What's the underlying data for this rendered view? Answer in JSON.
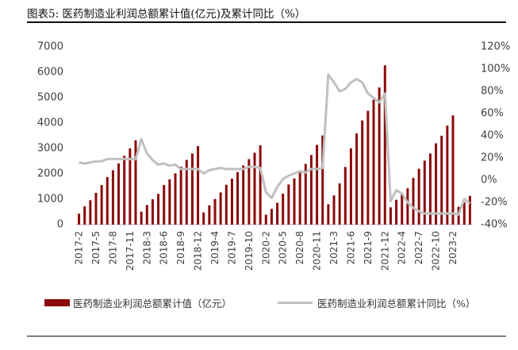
{
  "header": {
    "title": "图表5:  医药制造业利润总额累计值(亿元)及累计同比（%）"
  },
  "footer": {
    "source": ""
  },
  "colors": {
    "bar": "#8b0a0a",
    "line": "#c0c0c0",
    "axis": "#bfbfbf",
    "text": "#404040"
  },
  "chart_data": {
    "type": "bar",
    "x_tick_labels": [
      "2017-2",
      "2017-5",
      "2017-8",
      "2017-11",
      "2018-3",
      "2018-6",
      "2018-9",
      "2018-12",
      "2019-4",
      "2019-7",
      "2019-10",
      "2020-2",
      "2020-5",
      "2020-8",
      "2020-11",
      "2021-3",
      "2021-6",
      "2021-9",
      "2021-12",
      "2022-4",
      "2022-7",
      "2022-10",
      "2023-2"
    ],
    "y_left": {
      "min": 0,
      "max": 7000,
      "ticks": [
        0,
        1000,
        2000,
        3000,
        4000,
        5000,
        6000,
        7000
      ]
    },
    "y_right": {
      "min": -40,
      "max": 120,
      "ticks": [
        "-40%",
        "-20%",
        "0%",
        "20%",
        "40%",
        "60%",
        "80%",
        "100%",
        "120%"
      ],
      "tick_values": [
        -40,
        -20,
        0,
        20,
        40,
        60,
        80,
        100,
        120
      ]
    },
    "series": [
      {
        "name": "医药制造业利润总额累计值（亿元）",
        "type": "bar",
        "axis": "left",
        "values": [
          430,
          720,
          960,
          1250,
          1560,
          1870,
          2140,
          2410,
          2710,
          3000,
          3320,
          510,
          770,
          1000,
          1210,
          1560,
          1780,
          2020,
          2280,
          2550,
          2800,
          3090,
          480,
          760,
          1010,
          1270,
          1570,
          1810,
          2070,
          2330,
          2580,
          2830,
          3120,
          390,
          620,
          860,
          1220,
          1580,
          1820,
          2090,
          2390,
          2740,
          3140,
          3510,
          800,
          1150,
          1620,
          2270,
          3000,
          3590,
          4100,
          4480,
          4920,
          5400,
          6270,
          680,
          980,
          1210,
          1430,
          1840,
          2200,
          2520,
          2800,
          3200,
          3500,
          3900,
          4300,
          700,
          880,
          1130
        ]
      },
      {
        "name": "医药制造业利润总额累计同比（%）",
        "type": "line",
        "axis": "right",
        "values": [
          16,
          15,
          16,
          17,
          17,
          19,
          19,
          19,
          19,
          19,
          19,
          37,
          24,
          18,
          14,
          15,
          13,
          14,
          10,
          10,
          10,
          10,
          6,
          9,
          10,
          11,
          10,
          10,
          10,
          10,
          12,
          12,
          11,
          -11,
          -16,
          -6,
          1,
          4,
          6,
          8,
          7,
          10,
          10,
          11,
          95,
          88,
          80,
          82,
          88,
          91,
          88,
          78,
          74,
          70,
          78,
          -19,
          -9,
          -12,
          -20,
          -25,
          -28,
          -30,
          -30,
          -30,
          -30,
          -30,
          -30,
          -31,
          -17,
          -21
        ]
      }
    ],
    "legend": {
      "placement": "bottom-center"
    },
    "grid": false
  }
}
